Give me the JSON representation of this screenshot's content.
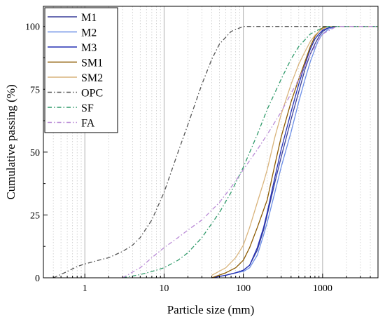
{
  "chart_data": {
    "type": "line",
    "title": "",
    "xlabel": "Particle size (mm)",
    "ylabel": "Cumulative passing (%)",
    "xscale": "log",
    "xlim": [
      0.3,
      5000
    ],
    "ylim": [
      0,
      108
    ],
    "xticks": [
      1,
      10,
      100,
      1000
    ],
    "xtick_labels": [
      "1",
      "10",
      "100",
      "1000"
    ],
    "yticks": [
      0,
      25,
      50,
      75,
      100
    ],
    "ytick_labels": [
      "0",
      "25",
      "50",
      "75",
      "100"
    ],
    "grid": true,
    "legend_position": "top-left",
    "series": [
      {
        "name": "M1",
        "color": "#3a3f9a",
        "dash": "solid",
        "x": [
          40,
          60,
          80,
          100,
          120,
          150,
          180,
          200,
          250,
          300,
          400,
          500,
          600,
          700,
          800,
          900,
          1000,
          1200,
          1500,
          2000,
          5000
        ],
        "y": [
          0,
          1,
          2,
          3,
          5,
          11,
          19,
          25,
          38,
          48,
          63,
          74,
          83,
          89,
          93,
          96,
          98,
          99.5,
          100,
          100,
          100
        ]
      },
      {
        "name": "M2",
        "color": "#6d8fe6",
        "dash": "solid",
        "x": [
          40,
          60,
          80,
          100,
          120,
          150,
          180,
          200,
          250,
          300,
          400,
          500,
          600,
          700,
          800,
          900,
          1000,
          1200,
          1500,
          2000,
          5000
        ],
        "y": [
          0,
          1,
          2,
          2.5,
          4,
          9,
          17,
          22,
          34,
          44,
          58,
          70,
          79,
          86,
          91,
          95,
          97,
          99,
          100,
          100,
          100
        ]
      },
      {
        "name": "M3",
        "color": "#2430b4",
        "dash": "solid",
        "x": [
          40,
          60,
          80,
          100,
          120,
          150,
          180,
          200,
          250,
          300,
          400,
          500,
          600,
          700,
          800,
          900,
          1000,
          1200,
          1500,
          2000,
          5000
        ],
        "y": [
          0,
          1,
          2,
          3,
          5,
          12,
          20,
          26,
          40,
          51,
          66,
          77,
          85,
          91,
          95,
          97,
          98.5,
          99.5,
          100,
          100,
          100
        ]
      },
      {
        "name": "SM1",
        "color": "#8c5a00",
        "dash": "solid",
        "x": [
          40,
          60,
          80,
          100,
          120,
          150,
          180,
          200,
          250,
          300,
          400,
          500,
          600,
          700,
          800,
          900,
          1000,
          1200,
          1500,
          2000,
          5000
        ],
        "y": [
          0,
          2,
          4,
          7,
          12,
          20,
          27,
          31,
          45,
          56,
          70,
          79,
          86,
          92,
          96,
          98,
          99.5,
          100,
          100,
          100,
          100
        ]
      },
      {
        "name": "SM2",
        "color": "#d9b47c",
        "dash": "solid",
        "x": [
          40,
          60,
          80,
          100,
          120,
          150,
          180,
          200,
          250,
          300,
          400,
          500,
          600,
          700,
          800,
          900,
          1000,
          1200,
          1500,
          2000,
          5000
        ],
        "y": [
          1,
          4,
          8,
          13,
          20,
          30,
          38,
          43,
          56,
          65,
          77,
          85,
          90,
          94,
          96.5,
          98,
          99,
          100,
          100,
          100,
          100
        ]
      },
      {
        "name": "OPC",
        "color": "#555555",
        "dash": "6,3,1.5,3",
        "x": [
          0.4,
          0.6,
          0.8,
          1,
          1.5,
          2,
          3,
          4,
          5,
          7,
          10,
          15,
          20,
          30,
          40,
          50,
          70,
          100,
          150,
          200,
          1000,
          5000
        ],
        "y": [
          0,
          2.5,
          4.5,
          5.5,
          7,
          8,
          10.5,
          13,
          16,
          23,
          34,
          50,
          61,
          77,
          87,
          93,
          98,
          100,
          100,
          100,
          100,
          100
        ]
      },
      {
        "name": "SF",
        "color": "#2f9a6a",
        "dash": "6,3,1.5,3",
        "x": [
          3,
          4,
          5,
          7,
          10,
          15,
          20,
          30,
          50,
          70,
          100,
          150,
          200,
          300,
          400,
          500,
          700,
          1000,
          1200,
          5000
        ],
        "y": [
          0,
          0.7,
          1.3,
          2.5,
          4,
          7,
          10,
          16,
          26,
          34,
          44,
          57,
          67,
          79,
          87,
          92,
          97,
          99.5,
          100,
          100
        ]
      },
      {
        "name": "FA",
        "color": "#b98ad6",
        "dash": "6,3,1.5,3",
        "x": [
          3,
          5,
          7,
          10,
          15,
          20,
          30,
          50,
          70,
          100,
          150,
          200,
          300,
          500,
          700,
          1000,
          1500,
          2000,
          5000
        ],
        "y": [
          0,
          4,
          8,
          12,
          16,
          19,
          23,
          30,
          36,
          43,
          51,
          57,
          66,
          79,
          89,
          97,
          100,
          100,
          100
        ]
      }
    ]
  }
}
